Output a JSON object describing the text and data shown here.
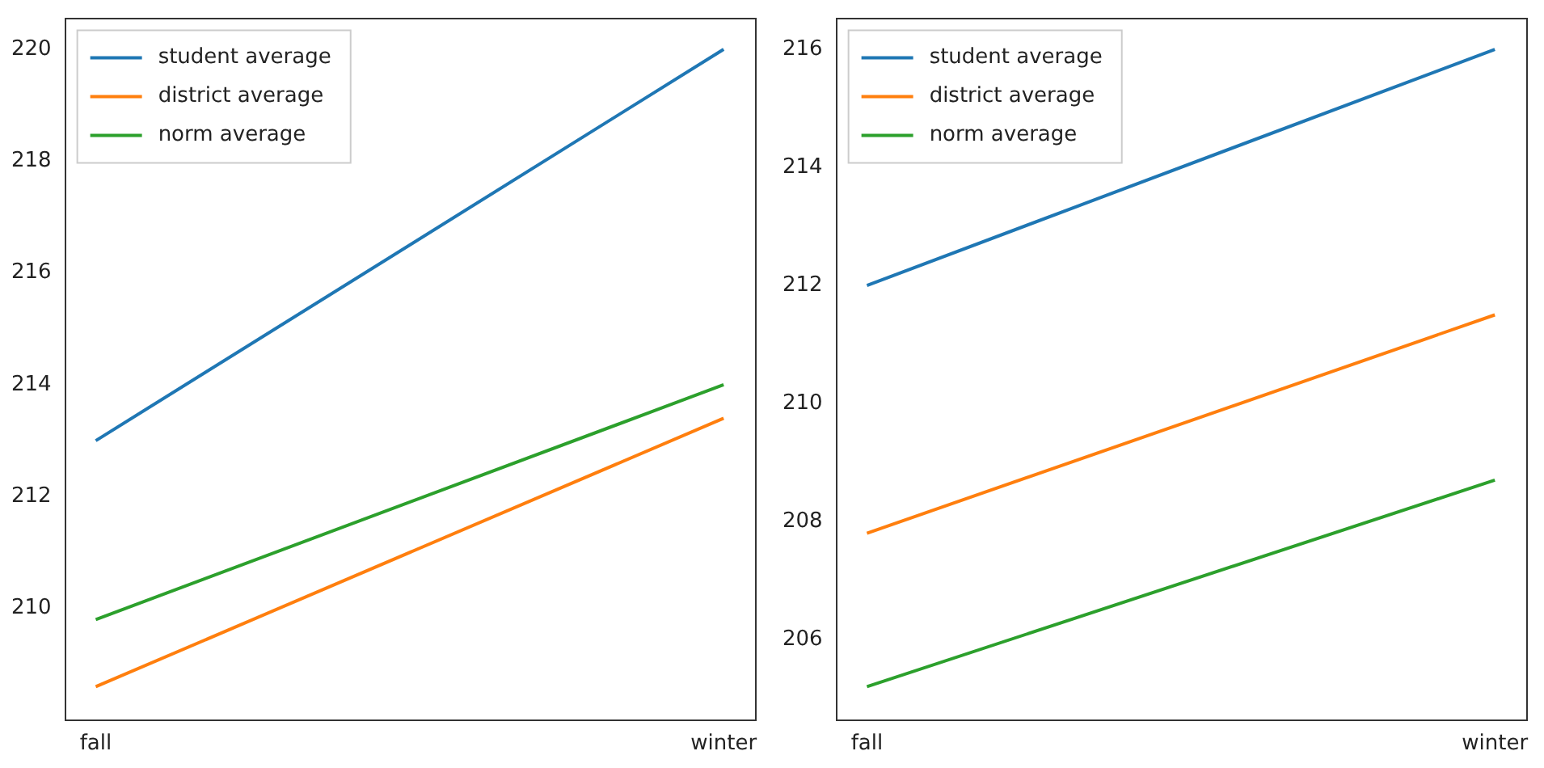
{
  "chart_data": [
    {
      "type": "line",
      "categories": [
        "fall",
        "winter"
      ],
      "legend": "top left",
      "grid": false,
      "ylim": [
        208.03,
        220.57
      ],
      "yticks": [
        210,
        212,
        214,
        216,
        218,
        220
      ],
      "series": [
        {
          "name": "student average",
          "color": "#1f77b4",
          "values": [
            213,
            220
          ]
        },
        {
          "name": "district average",
          "color": "#ff7f0e",
          "values": [
            208.6,
            213.4
          ]
        },
        {
          "name": "norm average",
          "color": "#2ca02c",
          "values": [
            209.8,
            214
          ]
        }
      ]
    },
    {
      "type": "line",
      "categories": [
        "fall",
        "winter"
      ],
      "legend": "top left",
      "grid": false,
      "ylim": [
        204.66,
        216.54
      ],
      "yticks": [
        206,
        208,
        210,
        212,
        214,
        216
      ],
      "series": [
        {
          "name": "student average",
          "color": "#1f77b4",
          "values": [
            212,
            216
          ]
        },
        {
          "name": "district average",
          "color": "#ff7f0e",
          "values": [
            207.8,
            211.5
          ]
        },
        {
          "name": "norm average",
          "color": "#2ca02c",
          "values": [
            205.2,
            208.7
          ]
        }
      ]
    }
  ]
}
